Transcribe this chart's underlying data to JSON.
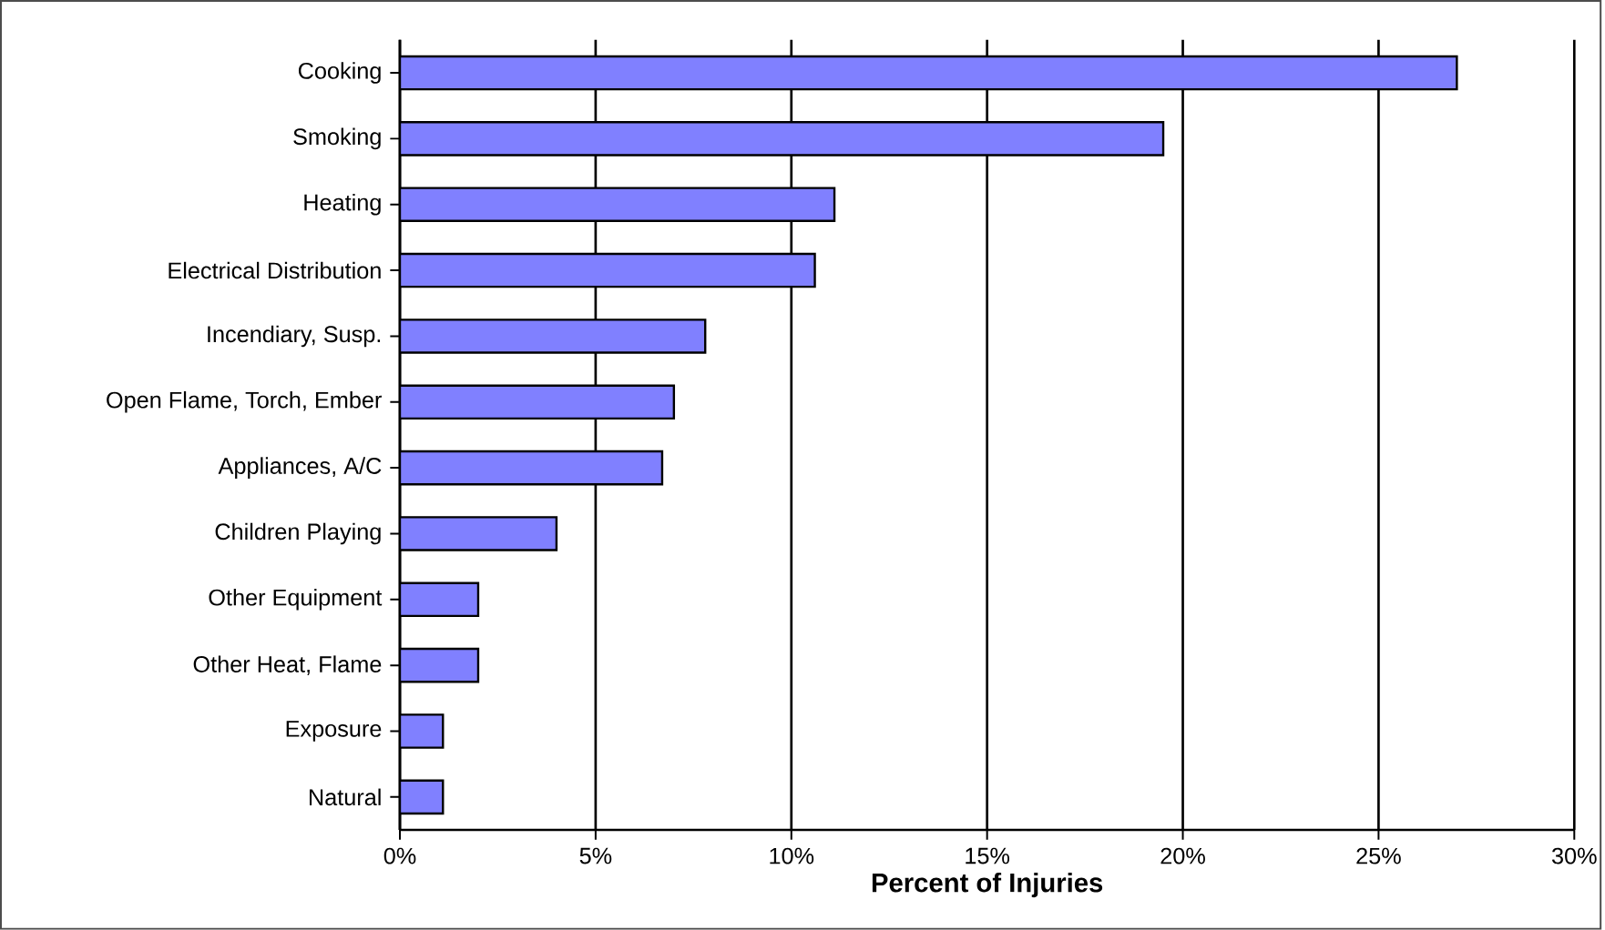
{
  "chart_data": {
    "type": "bar",
    "orientation": "horizontal",
    "xlabel": "Percent of Injuries",
    "categories": [
      "Cooking",
      "Smoking",
      "Heating",
      "Electrical Distribution",
      "Incendiary, Susp.",
      "Open Flame, Torch, Ember",
      "Appliances, A/C",
      "Children Playing",
      "Other Equipment",
      "Other Heat, Flame",
      "Exposure",
      "Natural"
    ],
    "values": [
      27.0,
      19.5,
      11.1,
      10.6,
      7.8,
      7.0,
      6.7,
      4.0,
      2.0,
      2.0,
      1.1,
      1.1
    ],
    "color": "#8080ff",
    "xlim": [
      0,
      30
    ],
    "xticks": [
      {
        "value": 0,
        "label": "0%"
      },
      {
        "value": 5,
        "label": "5%"
      },
      {
        "value": 10,
        "label": "10%"
      },
      {
        "value": 15,
        "label": "15%"
      },
      {
        "value": 20,
        "label": "20%"
      },
      {
        "value": 25,
        "label": "25%"
      },
      {
        "value": 30,
        "label": "30%"
      }
    ],
    "grid": "x"
  }
}
